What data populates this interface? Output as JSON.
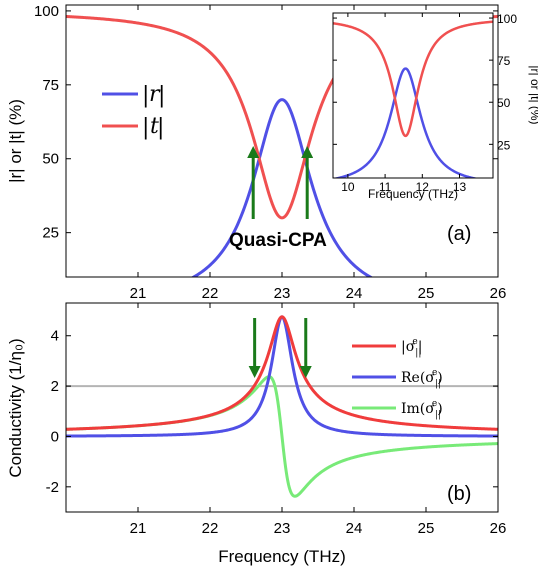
{
  "chart_data": [
    {
      "type": "line",
      "panel_label": "(a)",
      "xlabel": "",
      "ylabel": "|r| or |t| (%)",
      "xlim": [
        20,
        26
      ],
      "ylim": [
        10,
        102
      ],
      "xticks": [
        21,
        22,
        23,
        24,
        25,
        26
      ],
      "yticks": [
        25,
        50,
        75,
        100
      ],
      "grid": false,
      "legend_position": "left",
      "series": [
        {
          "name": "|r|",
          "color": "#5050e6",
          "resonance": {
            "peak_x": 23.0,
            "peak_y": 70,
            "half_width": 0.5,
            "background": 0
          }
        },
        {
          "name": "|t|",
          "color": "#f05050",
          "resonance": {
            "dip_x": 23.0,
            "dip_y": 30,
            "half_width": 0.5,
            "background": 100
          }
        }
      ],
      "annotation": {
        "text": "Quasi-CPA",
        "arrows_x": [
          22.6,
          23.35
        ],
        "arrow_color": "#1a7a1a"
      },
      "inset": {
        "xlabel": "Frequency (THz)",
        "ylabel": "|r| or |t| (%)",
        "xlim": [
          9.6,
          13.9
        ],
        "ylim": [
          5,
          103
        ],
        "xticks": [
          10,
          11,
          12,
          13
        ],
        "yticks": [
          25,
          50,
          75,
          100
        ],
        "series": [
          {
            "name": "|r|",
            "color": "#5050e6",
            "resonance": {
              "peak_x": 11.55,
              "peak_y": 70,
              "half_width": 0.5,
              "background": 0
            }
          },
          {
            "name": "|t|",
            "color": "#f05050",
            "resonance": {
              "dip_x": 11.55,
              "dip_y": 30,
              "half_width": 0.42,
              "background": 100
            }
          }
        ]
      }
    },
    {
      "type": "line",
      "panel_label": "(b)",
      "xlabel": "Frequency (THz)",
      "ylabel": "Conductivity (1/η₀)",
      "xlim": [
        20,
        26
      ],
      "ylim": [
        -3.0,
        5.3
      ],
      "xticks": [
        21,
        22,
        23,
        24,
        25,
        26
      ],
      "yticks": [
        -2,
        0,
        2,
        4
      ],
      "grid": false,
      "legend_position": "right",
      "reference_line": {
        "y": 2,
        "color": "#b4b4b4"
      },
      "arrows_x": [
        22.62,
        23.33
      ],
      "arrow_color": "#1a7a1a",
      "resonance": {
        "center": 23.0,
        "peak": 4.75,
        "gamma": 0.18
      },
      "series": [
        {
          "name": "|σ∥ᵉ|",
          "color": "#f03c3c",
          "component": "abs"
        },
        {
          "name": "Re(σ∥ᵉ)",
          "color": "#5050e6",
          "component": "re"
        },
        {
          "name": "Im(σ∥ᵉ)",
          "color": "#78ea78",
          "component": "im"
        }
      ]
    }
  ],
  "legend_a": {
    "r_label": "r",
    "t_label": "t"
  },
  "legend_b": {
    "abs": "|σ",
    "re": "Re(σ",
    "im": "Im(σ",
    "sub": "||",
    "sup": "e"
  },
  "annot_text": "Quasi-CPA"
}
